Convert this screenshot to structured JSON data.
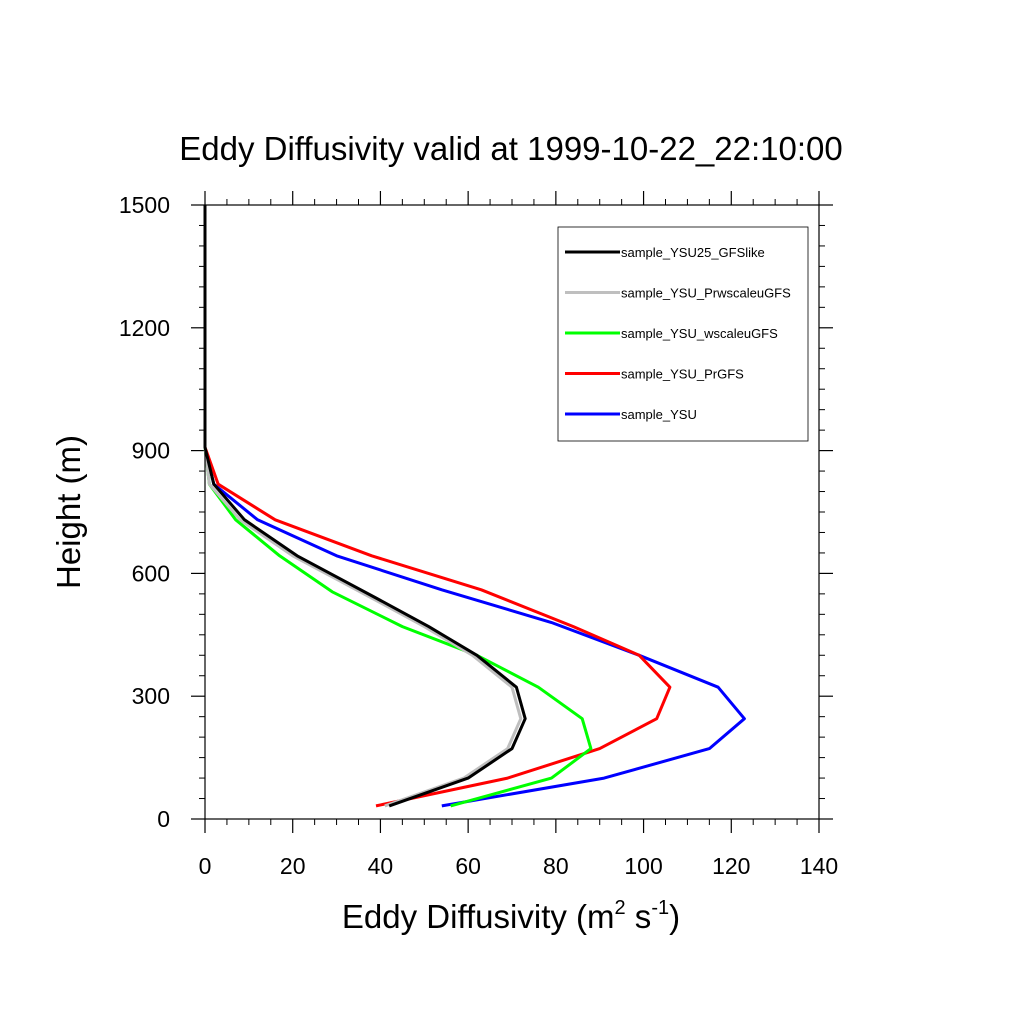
{
  "chart_data": {
    "type": "line",
    "title": "Eddy Diffusivity valid at 1999-10-22_22:10:00",
    "xlabel": "Eddy Diffusivity (m",
    "xlabel_sup1": "2",
    "xlabel_mid": " s",
    "xlabel_sup2": "-1",
    "xlabel_end": ")",
    "ylabel": "Height (m)",
    "xlim": [
      0,
      140
    ],
    "ylim": [
      0,
      1500
    ],
    "x_ticks": [
      0,
      20,
      40,
      60,
      80,
      100,
      120,
      140
    ],
    "y_ticks": [
      0,
      300,
      600,
      900,
      1200,
      1500
    ],
    "legend_position": "top-right",
    "series": [
      {
        "name": "sample_YSU25_GFSlike",
        "color": "#000000",
        "points": [
          [
            42,
            32
          ],
          [
            60,
            100
          ],
          [
            70,
            172
          ],
          [
            73,
            245
          ],
          [
            71,
            322
          ],
          [
            62,
            400
          ],
          [
            51,
            470
          ],
          [
            39,
            540
          ],
          [
            32,
            580
          ],
          [
            21,
            643
          ],
          [
            9,
            731
          ],
          [
            2,
            818
          ],
          [
            0,
            908
          ],
          [
            0,
            1000
          ],
          [
            0,
            1500
          ]
        ]
      },
      {
        "name": "sample_YSU_PrwscaleuGFS",
        "color": "#bfbfbf",
        "points": [
          [
            41,
            32
          ],
          [
            59,
            100
          ],
          [
            69,
            172
          ],
          [
            72,
            245
          ],
          [
            70,
            322
          ],
          [
            61,
            400
          ],
          [
            50,
            470
          ],
          [
            38,
            540
          ],
          [
            31,
            580
          ],
          [
            20,
            643
          ],
          [
            8,
            731
          ],
          [
            1,
            818
          ],
          [
            0,
            908
          ],
          [
            0,
            1000
          ],
          [
            0,
            1500
          ]
        ]
      },
      {
        "name": "sample_YSU_wscaleuGFS",
        "color": "#00ff00",
        "points": [
          [
            56,
            32
          ],
          [
            79,
            100
          ],
          [
            88,
            172
          ],
          [
            86,
            245
          ],
          [
            76,
            322
          ],
          [
            62,
            400
          ],
          [
            45,
            470
          ],
          [
            29,
            555
          ],
          [
            17,
            643
          ],
          [
            7,
            731
          ],
          [
            1,
            818
          ],
          [
            0,
            908
          ],
          [
            0,
            1000
          ],
          [
            0,
            1500
          ]
        ]
      },
      {
        "name": "sample_YSU_PrGFS",
        "color": "#ff0000",
        "points": [
          [
            39,
            32
          ],
          [
            69,
            100
          ],
          [
            90,
            172
          ],
          [
            103,
            245
          ],
          [
            106,
            322
          ],
          [
            99,
            400
          ],
          [
            84,
            470
          ],
          [
            63,
            560
          ],
          [
            38,
            643
          ],
          [
            16,
            731
          ],
          [
            3,
            818
          ],
          [
            0,
            908
          ],
          [
            0,
            1000
          ],
          [
            0,
            1500
          ]
        ]
      },
      {
        "name": "sample_YSU",
        "color": "#0000ff",
        "points": [
          [
            54,
            32
          ],
          [
            91,
            100
          ],
          [
            115,
            172
          ],
          [
            123,
            245
          ],
          [
            117,
            322
          ],
          [
            99,
            400
          ],
          [
            79,
            480
          ],
          [
            54,
            560
          ],
          [
            30,
            643
          ],
          [
            12,
            731
          ],
          [
            2,
            818
          ],
          [
            0,
            908
          ],
          [
            0,
            1000
          ],
          [
            0,
            1500
          ]
        ]
      }
    ]
  }
}
